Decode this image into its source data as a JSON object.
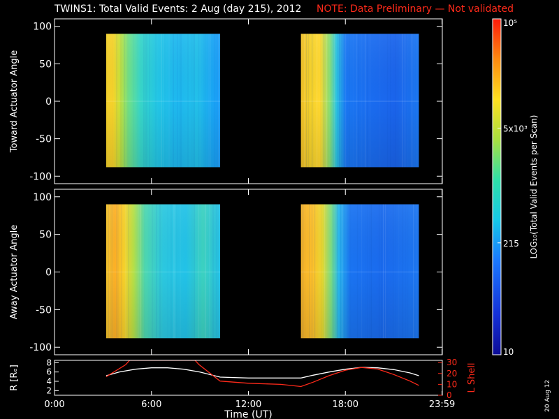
{
  "title": {
    "main": "TWINS1: Total Valid Events:  2 Aug (day 215), 2012",
    "note": "NOTE: Data Preliminary — Not validated",
    "note_color": "#ff2a1a"
  },
  "footnote": "20 Aug 12",
  "colors": {
    "background": "#000000",
    "axes": "#ffffff",
    "red_series": "#ff2a1a"
  },
  "chart_data": [
    {
      "type": "heatmap",
      "title": "",
      "ylabel": "Toward Actuator Angle",
      "xlabel": "",
      "xlim": [
        0,
        24
      ],
      "ylim": [
        -110,
        110
      ],
      "yticks": [
        100,
        50,
        0,
        -50,
        -100
      ],
      "colorscale": "log",
      "data_blocks": [
        {
          "t_start": 3.2,
          "t_end": 10.25,
          "angle_range": [
            -88,
            90
          ]
        },
        {
          "t_start": 15.25,
          "t_end": 22.55,
          "angle_range": [
            -88,
            90
          ]
        }
      ]
    },
    {
      "type": "heatmap",
      "title": "",
      "ylabel": "Away Actuator Angle",
      "xlabel": "",
      "xlim": [
        0,
        24
      ],
      "ylim": [
        -110,
        110
      ],
      "yticks": [
        100,
        50,
        0,
        -50,
        -100
      ],
      "colorscale": "log",
      "data_blocks": [
        {
          "t_start": 3.2,
          "t_end": 10.25,
          "angle_range": [
            -88,
            90
          ]
        },
        {
          "t_start": 15.25,
          "t_end": 22.55,
          "angle_range": [
            -88,
            90
          ]
        }
      ]
    },
    {
      "type": "line",
      "title": "",
      "xlabel": "Time (UT)",
      "xlim": [
        0,
        24
      ],
      "x_ticks": [
        0,
        6,
        12,
        18,
        23.983
      ],
      "x_tick_labels": [
        "0:00",
        "6:00",
        "12:00",
        "18:00",
        "23:59"
      ],
      "ylabel_left": "R [Rₑ]",
      "ylim_left": [
        1,
        8.5
      ],
      "yticks_left": [
        8,
        6,
        4,
        2
      ],
      "ylabel_right": "L Shell",
      "ylim_right": [
        0,
        32
      ],
      "yticks_right": [
        30,
        20,
        10,
        0
      ],
      "series": [
        {
          "name": "R",
          "axis": "left",
          "color": "#ffffff",
          "x": [
            3.2,
            4,
            5,
            6,
            7,
            8,
            9,
            10.25,
            12,
            14,
            15.25,
            16,
            17,
            18,
            19,
            20,
            21,
            22,
            22.55
          ],
          "y": [
            5.2,
            6.0,
            6.6,
            6.9,
            6.9,
            6.6,
            6.0,
            4.9,
            4.7,
            4.7,
            4.7,
            5.3,
            6.0,
            6.6,
            7.0,
            6.9,
            6.5,
            5.8,
            5.2
          ]
        },
        {
          "name": "L Shell",
          "axis": "right",
          "color": "#ff2a1a",
          "x": [
            3.2,
            4.4,
            4.65,
            8.7,
            8.95,
            10.25,
            12,
            14,
            15.25,
            16,
            17,
            18,
            19,
            20,
            21,
            22,
            22.55
          ],
          "y": [
            17,
            28,
            32,
            32,
            28,
            13,
            11,
            10,
            8,
            12,
            18,
            23,
            25.5,
            24,
            19,
            13,
            9
          ]
        }
      ]
    }
  ],
  "colorbar": {
    "label": "LOG₁₀(Total Valid Events per Scan)",
    "ticks": [
      {
        "value": 100000,
        "text": "10⁵"
      },
      {
        "value": 5000,
        "text": "5x10³"
      },
      {
        "value": 215,
        "text": "215"
      },
      {
        "value": 10,
        "text": "10"
      }
    ],
    "range": [
      10,
      100000
    ]
  }
}
